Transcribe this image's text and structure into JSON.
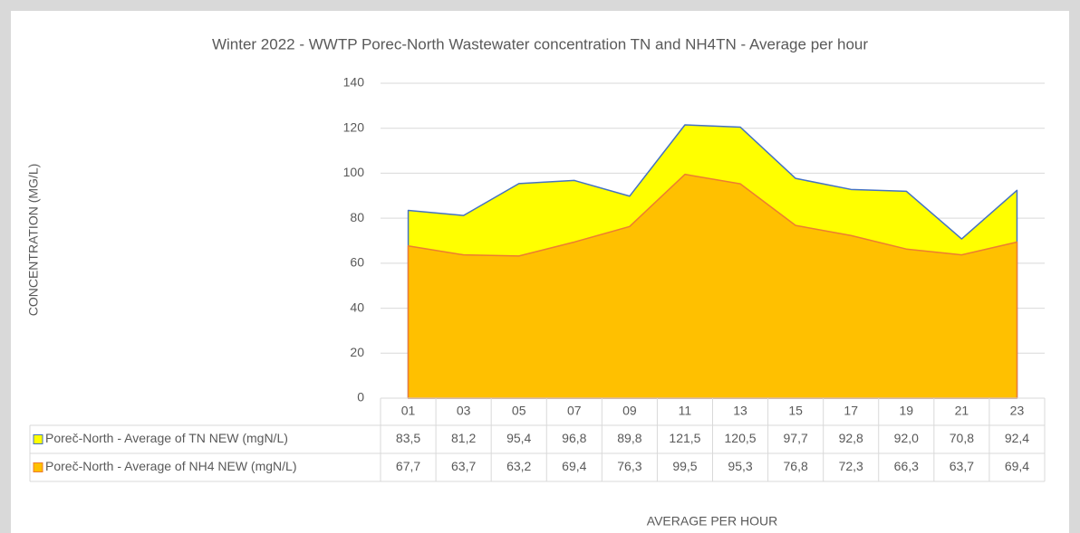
{
  "chart_data": {
    "type": "area",
    "title": "Winter 2022 - WWTP Porec-North Wastewater concentration TN and NH4TN - Average per hour",
    "x_label": "AVERAGE PER HOUR",
    "y_label": "CONCENTRATION (MG/L)",
    "categories": [
      "01",
      "03",
      "05",
      "07",
      "09",
      "11",
      "13",
      "15",
      "17",
      "19",
      "21",
      "23"
    ],
    "series": [
      {
        "name": "Poreč-North - Average of TN  NEW (mgN/L)",
        "color": "#ffff00",
        "line_color": "#4472c4",
        "values": [
          83.5,
          81.2,
          95.4,
          96.8,
          89.8,
          121.5,
          120.5,
          97.7,
          92.8,
          92.0,
          70.8,
          92.4
        ],
        "value_labels": [
          "83,5",
          "81,2",
          "95,4",
          "96,8",
          "89,8",
          "121,5",
          "120,5",
          "97,7",
          "92,8",
          "92,0",
          "70,8",
          "92,4"
        ]
      },
      {
        "name": "Poreč-North - Average of NH4 NEW (mgN/L)",
        "color": "#ffc000",
        "line_color": "#ed7d31",
        "values": [
          67.7,
          63.7,
          63.2,
          69.4,
          76.3,
          99.5,
          95.3,
          76.8,
          72.3,
          66.3,
          63.7,
          69.4
        ],
        "value_labels": [
          "67,7",
          "63,7",
          "63,2",
          "69,4",
          "76,3",
          "99,5",
          "95,3",
          "76,8",
          "72,3",
          "66,3",
          "63,7",
          "69,4"
        ]
      }
    ],
    "ylim": [
      0,
      140
    ],
    "yticks": [
      0,
      20,
      40,
      60,
      80,
      100,
      120,
      140
    ],
    "grid": true,
    "data_table": true
  }
}
